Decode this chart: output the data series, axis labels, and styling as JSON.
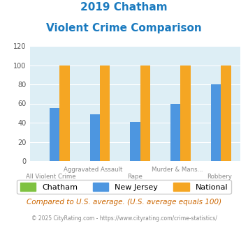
{
  "title_line1": "2019 Chatham",
  "title_line2": "Violent Crime Comparison",
  "title_color": "#1a7abf",
  "categories": [
    "All Violent Crime",
    "Aggravated Assault",
    "Rape",
    "Murder & Mans...",
    "Robbery"
  ],
  "tick_labels_row1": [
    "",
    "Aggravated Assault",
    "",
    "Murder & Mans...",
    ""
  ],
  "tick_labels_row2": [
    "All Violent Crime",
    "",
    "Rape",
    "",
    "Robbery"
  ],
  "chatham_values": [
    0,
    0,
    0,
    0,
    0
  ],
  "nj_values": [
    55,
    49,
    41,
    60,
    80
  ],
  "national_values": [
    100,
    100,
    100,
    100,
    100
  ],
  "chatham_color": "#7fc241",
  "nj_color": "#4d96e0",
  "national_color": "#f5a623",
  "bg_color": "#ddeef5",
  "ylim": [
    0,
    120
  ],
  "yticks": [
    0,
    20,
    40,
    60,
    80,
    100,
    120
  ],
  "bar_width": 0.25,
  "legend_labels": [
    "Chatham",
    "New Jersey",
    "National"
  ],
  "footnote1": "Compared to U.S. average. (U.S. average equals 100)",
  "footnote2": "© 2025 CityRating.com - https://www.cityrating.com/crime-statistics/",
  "footnote1_color": "#cc6600",
  "footnote2_color": "#888888"
}
